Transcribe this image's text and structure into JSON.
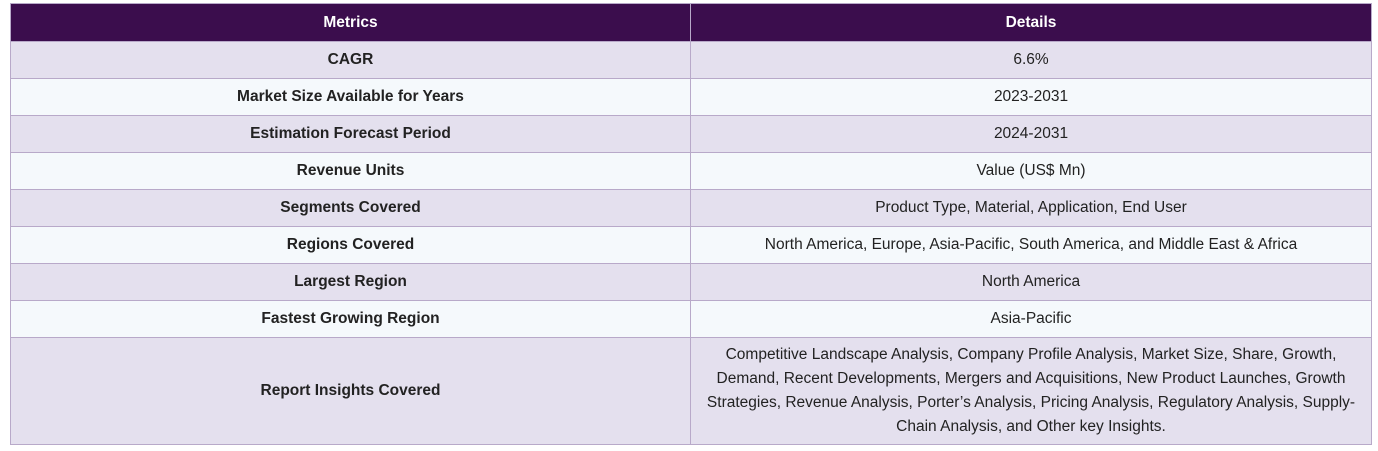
{
  "table": {
    "headers": [
      "Metrics",
      "Details"
    ],
    "rows": [
      {
        "metric": "CAGR",
        "detail": "6.6%"
      },
      {
        "metric": "Market Size Available for Years",
        "detail": "2023-2031"
      },
      {
        "metric": "Estimation Forecast Period",
        "detail": "2024-2031"
      },
      {
        "metric": "Revenue Units",
        "detail": "Value (US$ Mn)"
      },
      {
        "metric": "Segments Covered",
        "detail": "Product Type, Material, Application, End User"
      },
      {
        "metric": "Regions Covered",
        "detail": "North America, Europe, Asia-Pacific, South America, and Middle East & Africa"
      },
      {
        "metric": "Largest Region",
        "detail": "North America"
      },
      {
        "metric": "Fastest Growing Region",
        "detail": "Asia-Pacific"
      },
      {
        "metric": "Report Insights Covered",
        "detail": "Competitive Landscape Analysis, Company Profile Analysis, Market Size, Share, Growth, Demand, Recent Developments, Mergers and Acquisitions, New Product Launches, Growth Strategies, Revenue Analysis, Porter’s Analysis, Pricing Analysis, Regulatory Analysis, Supply-Chain Analysis, and Other key Insights."
      }
    ]
  },
  "colors": {
    "header_bg": "#3b0d4d",
    "row_odd": "#e4e0ee",
    "row_even": "#f5f9fc",
    "border": "#b8a9c9"
  }
}
